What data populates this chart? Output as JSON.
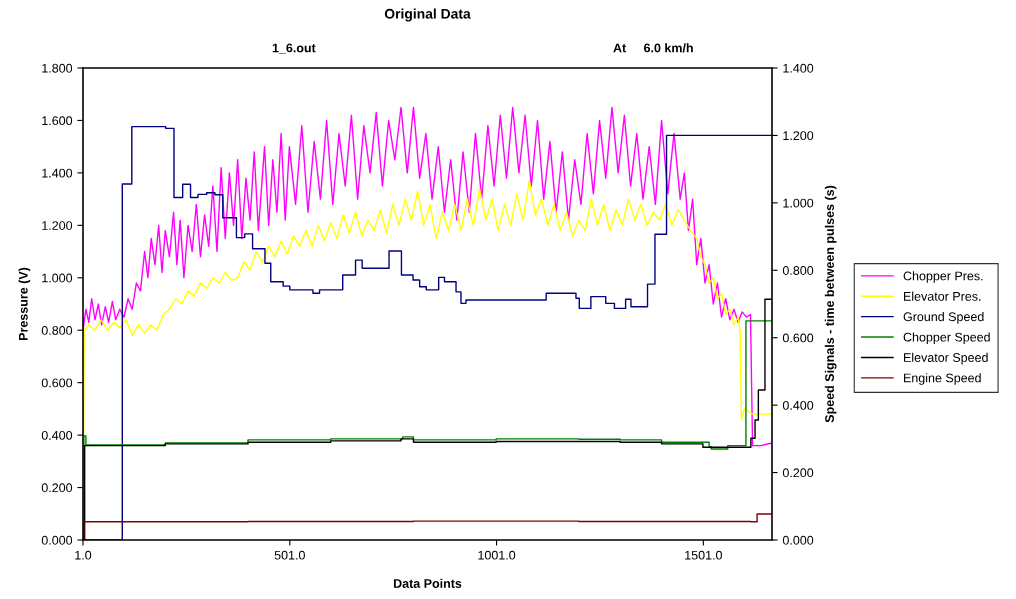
{
  "chart_data": {
    "type": "line",
    "title": "Original Data",
    "subtitle": "1_6.out",
    "annotations": [
      "At     6.0 km/h"
    ],
    "xlabel": "Data Points",
    "ylabel": "Pressure (V)",
    "y2label": "Speed Signals - time between pulses (s)",
    "xlim": [
      1,
      1667
    ],
    "xticks": [
      {
        "value": 1,
        "label": "1.0"
      },
      {
        "value": 501,
        "label": "501.0"
      },
      {
        "value": 1001,
        "label": "1001.0"
      },
      {
        "value": 1501,
        "label": "1501.0"
      }
    ],
    "ylim": [
      0,
      1.8
    ],
    "yticks": [
      {
        "value": 0,
        "label": "0.000"
      },
      {
        "value": 0.2,
        "label": "0.200"
      },
      {
        "value": 0.4,
        "label": "0.400"
      },
      {
        "value": 0.6,
        "label": "0.600"
      },
      {
        "value": 0.8,
        "label": "0.800"
      },
      {
        "value": 1.0,
        "label": "1.000"
      },
      {
        "value": 1.2,
        "label": "1.200"
      },
      {
        "value": 1.4,
        "label": "1.400"
      },
      {
        "value": 1.6,
        "label": "1.600"
      },
      {
        "value": 1.8,
        "label": "1.800"
      }
    ],
    "y2lim": [
      0,
      1.4
    ],
    "y2ticks": [
      {
        "value": 0,
        "label": "0.000"
      },
      {
        "value": 0.2,
        "label": "0.200"
      },
      {
        "value": 0.4,
        "label": "0.400"
      },
      {
        "value": 0.6,
        "label": "0.600"
      },
      {
        "value": 0.8,
        "label": "0.800"
      },
      {
        "value": 1.0,
        "label": "1.000"
      },
      {
        "value": 1.2,
        "label": "1.200"
      },
      {
        "value": 1.4,
        "label": "1.400"
      }
    ],
    "grid": false,
    "legend": "right",
    "marker": "none",
    "line_style": "solid",
    "series": [
      {
        "name": "Chopper Pres.",
        "color": "#ff00ff",
        "x": [
          1,
          8,
          15,
          22,
          30,
          38,
          46,
          55,
          63,
          72,
          80,
          90,
          100,
          110,
          120,
          130,
          140,
          150,
          158,
          166,
          175,
          184,
          192,
          200,
          210,
          220,
          228,
          236,
          245,
          255,
          265,
          275,
          285,
          295,
          305,
          315,
          325,
          335,
          345,
          355,
          365,
          375,
          385,
          395,
          405,
          415,
          425,
          440,
          450,
          460,
          470,
          480,
          490,
          500,
          515,
          530,
          545,
          560,
          575,
          590,
          605,
          620,
          635,
          650,
          665,
          680,
          695,
          710,
          725,
          740,
          755,
          770,
          785,
          800,
          815,
          830,
          845,
          860,
          875,
          890,
          905,
          920,
          935,
          950,
          965,
          980,
          995,
          1010,
          1025,
          1040,
          1055,
          1070,
          1085,
          1100,
          1115,
          1130,
          1145,
          1160,
          1175,
          1190,
          1205,
          1220,
          1235,
          1250,
          1265,
          1280,
          1295,
          1310,
          1325,
          1340,
          1355,
          1370,
          1385,
          1400,
          1415,
          1430,
          1445,
          1455,
          1465,
          1475,
          1485,
          1495,
          1505,
          1515,
          1525,
          1535,
          1545,
          1555,
          1565,
          1575,
          1585,
          1595,
          1605,
          1615,
          1620,
          1640,
          1667
        ],
        "values": [
          0.8,
          0.88,
          0.83,
          0.92,
          0.84,
          0.9,
          0.82,
          0.89,
          0.83,
          0.91,
          0.84,
          0.88,
          0.85,
          0.92,
          0.88,
          0.98,
          0.95,
          1.1,
          1.0,
          1.15,
          1.05,
          1.2,
          1.02,
          1.18,
          1.08,
          1.25,
          1.05,
          1.22,
          1.0,
          1.2,
          1.1,
          1.28,
          1.08,
          1.24,
          1.12,
          1.35,
          1.1,
          1.42,
          1.15,
          1.4,
          1.2,
          1.45,
          1.15,
          1.38,
          1.22,
          1.48,
          1.18,
          1.5,
          1.2,
          1.45,
          1.25,
          1.55,
          1.22,
          1.5,
          1.28,
          1.58,
          1.25,
          1.52,
          1.3,
          1.6,
          1.28,
          1.55,
          1.35,
          1.62,
          1.3,
          1.58,
          1.4,
          1.63,
          1.35,
          1.6,
          1.45,
          1.65,
          1.4,
          1.65,
          1.38,
          1.55,
          1.3,
          1.5,
          1.25,
          1.45,
          1.22,
          1.48,
          1.25,
          1.55,
          1.3,
          1.58,
          1.35,
          1.62,
          1.38,
          1.65,
          1.4,
          1.62,
          1.35,
          1.6,
          1.3,
          1.52,
          1.25,
          1.48,
          1.22,
          1.45,
          1.28,
          1.55,
          1.32,
          1.6,
          1.38,
          1.65,
          1.4,
          1.62,
          1.35,
          1.55,
          1.3,
          1.5,
          1.28,
          1.6,
          1.32,
          1.55,
          1.3,
          1.4,
          1.18,
          1.3,
          1.05,
          1.15,
          0.98,
          1.05,
          0.9,
          0.98,
          0.85,
          0.92,
          0.84,
          0.88,
          0.83,
          0.87,
          0.85,
          0.86,
          0.36,
          0.36,
          0.37
        ]
      },
      {
        "name": "Elevator Pres.",
        "color": "#ffff00",
        "x": [
          1,
          4,
          15,
          30,
          45,
          60,
          75,
          90,
          105,
          120,
          135,
          150,
          165,
          180,
          195,
          210,
          225,
          240,
          255,
          270,
          285,
          300,
          315,
          330,
          345,
          360,
          375,
          390,
          405,
          420,
          435,
          450,
          465,
          480,
          495,
          510,
          525,
          540,
          555,
          570,
          585,
          600,
          615,
          630,
          645,
          660,
          675,
          690,
          705,
          720,
          735,
          750,
          765,
          780,
          795,
          810,
          825,
          840,
          855,
          870,
          885,
          900,
          915,
          930,
          945,
          960,
          975,
          990,
          1005,
          1020,
          1035,
          1050,
          1065,
          1080,
          1095,
          1110,
          1125,
          1140,
          1155,
          1170,
          1185,
          1200,
          1215,
          1230,
          1245,
          1260,
          1275,
          1290,
          1305,
          1320,
          1335,
          1350,
          1365,
          1380,
          1395,
          1410,
          1425,
          1440,
          1455,
          1470,
          1485,
          1495,
          1505,
          1515,
          1525,
          1535,
          1545,
          1555,
          1565,
          1575,
          1585,
          1590,
          1593,
          1600,
          1620,
          1667
        ],
        "values": [
          0.0,
          0.8,
          0.82,
          0.8,
          0.84,
          0.8,
          0.83,
          0.81,
          0.84,
          0.78,
          0.82,
          0.79,
          0.82,
          0.8,
          0.86,
          0.88,
          0.92,
          0.9,
          0.95,
          0.93,
          0.98,
          0.96,
          1.0,
          0.98,
          1.02,
          0.99,
          1.0,
          1.06,
          1.03,
          1.1,
          1.06,
          1.12,
          1.08,
          1.14,
          1.09,
          1.16,
          1.12,
          1.18,
          1.12,
          1.2,
          1.14,
          1.21,
          1.15,
          1.24,
          1.17,
          1.25,
          1.16,
          1.22,
          1.18,
          1.26,
          1.17,
          1.28,
          1.2,
          1.3,
          1.22,
          1.33,
          1.2,
          1.28,
          1.15,
          1.25,
          1.18,
          1.28,
          1.18,
          1.3,
          1.2,
          1.34,
          1.22,
          1.3,
          1.18,
          1.28,
          1.2,
          1.32,
          1.22,
          1.37,
          1.24,
          1.3,
          1.2,
          1.28,
          1.18,
          1.25,
          1.16,
          1.22,
          1.18,
          1.3,
          1.2,
          1.28,
          1.18,
          1.26,
          1.2,
          1.3,
          1.22,
          1.28,
          1.2,
          1.25,
          1.22,
          1.28,
          1.2,
          1.26,
          1.22,
          1.18,
          1.15,
          1.08,
          1.05,
          0.98,
          1.0,
          0.92,
          0.94,
          0.86,
          0.88,
          0.82,
          0.85,
          0.8,
          0.46,
          0.5,
          0.48,
          0.48
        ]
      },
      {
        "name": "Ground Speed",
        "color": "#000080",
        "type": "step",
        "axis": "y2",
        "x": [
          1,
          96,
          119,
          201,
          221,
          242,
          261,
          279,
          300,
          320,
          339,
          372,
          392,
          411,
          441,
          455,
          485,
          501,
          557,
          573,
          629,
          660,
          676,
          741,
          771,
          799,
          815,
          831,
          861,
          875,
          903,
          915,
          927,
          1121,
          1193,
          1201,
          1229,
          1265,
          1286,
          1313,
          1326,
          1366,
          1384,
          1412,
          1667
        ],
        "values": [
          0,
          1.056,
          1.226,
          1.221,
          1.016,
          1.055,
          1.016,
          1.025,
          1.03,
          1.024,
          0.956,
          0.897,
          0.908,
          0.864,
          0.821,
          0.766,
          0.753,
          0.742,
          0.732,
          0.742,
          0.786,
          0.83,
          0.806,
          0.857,
          0.786,
          0.771,
          0.751,
          0.742,
          0.779,
          0.766,
          0.736,
          0.702,
          0.712,
          0.732,
          0.717,
          0.687,
          0.722,
          0.702,
          0.687,
          0.714,
          0.692,
          0.759,
          0.907,
          1.2,
          1.2
        ]
      },
      {
        "name": "Chopper Speed",
        "color": "#008000",
        "type": "step",
        "axis": "y2",
        "x": [
          1,
          3,
          8,
          200,
          400,
          600,
          774,
          800,
          1000,
          1200,
          1300,
          1400,
          1515,
          1520,
          1560,
          1604,
          1667
        ],
        "values": [
          0,
          0.309,
          0.282,
          0.288,
          0.297,
          0.3,
          0.306,
          0.297,
          0.3,
          0.299,
          0.297,
          0.29,
          0.277,
          0.27,
          0.28,
          0.65,
          0.65
        ]
      },
      {
        "name": "Elevator Speed",
        "color": "#000000",
        "type": "step",
        "axis": "y2",
        "x": [
          1,
          5,
          200,
          400,
          600,
          770,
          800,
          1000,
          1200,
          1300,
          1400,
          1500,
          1616,
          1626,
          1634,
          1650,
          1667
        ],
        "values": [
          0,
          0.28,
          0.285,
          0.29,
          0.294,
          0.3,
          0.29,
          0.292,
          0.292,
          0.29,
          0.285,
          0.275,
          0.302,
          0.356,
          0.445,
          0.714,
          0.714
        ]
      },
      {
        "name": "Engine Speed",
        "color": "#800000",
        "type": "step",
        "axis": "y2",
        "x": [
          1,
          3,
          400,
          800,
          1200,
          1616,
          1631,
          1667
        ],
        "values": [
          0,
          0.054,
          0.055,
          0.056,
          0.055,
          0.054,
          0.077,
          0.077
        ]
      }
    ]
  }
}
